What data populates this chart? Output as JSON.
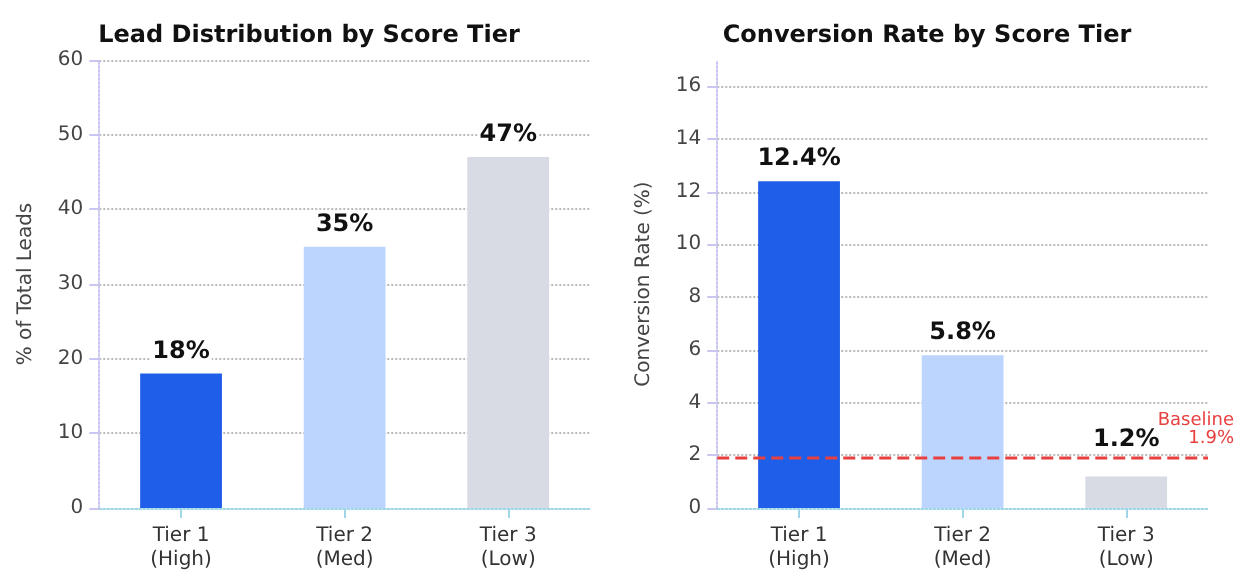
{
  "chart_data": [
    {
      "type": "bar",
      "title": "Lead Distribution by Score Tier",
      "ylabel": "% of Total Leads",
      "categories": [
        "Tier 1\n(High)",
        "Tier 2\n(Med)",
        "Tier 3\n(Low)"
      ],
      "values": [
        18,
        35,
        47
      ],
      "colors": [
        "#1f5ee8",
        "#bcd5ff",
        "#d8dbe3"
      ],
      "value_labels": [
        "18%",
        "35%",
        "47%"
      ],
      "ylim": [
        0,
        60
      ],
      "yticks": [
        0,
        10,
        20,
        30,
        40,
        50,
        60
      ],
      "grid": "y"
    },
    {
      "type": "bar",
      "title": "Conversion Rate by Score Tier",
      "ylabel": "Conversion Rate (%)",
      "categories": [
        "Tier 1\n(High)",
        "Tier 2\n(Med)",
        "Tier 3\n(Low)"
      ],
      "values": [
        12.4,
        5.8,
        1.2
      ],
      "colors": [
        "#1f5ee8",
        "#bcd5ff",
        "#d8dbe3"
      ],
      "value_labels": [
        "12.4%",
        "5.8%",
        "1.2%"
      ],
      "ylim": [
        0,
        17
      ],
      "yticks": [
        0,
        2,
        4,
        6,
        8,
        10,
        12,
        14,
        16
      ],
      "grid": "y",
      "ref_lines": [
        {
          "axis": "y",
          "value": 1.9,
          "label": "Baseline\n1.9%",
          "color": "#e84040",
          "line_style": "dashed"
        }
      ]
    }
  ]
}
